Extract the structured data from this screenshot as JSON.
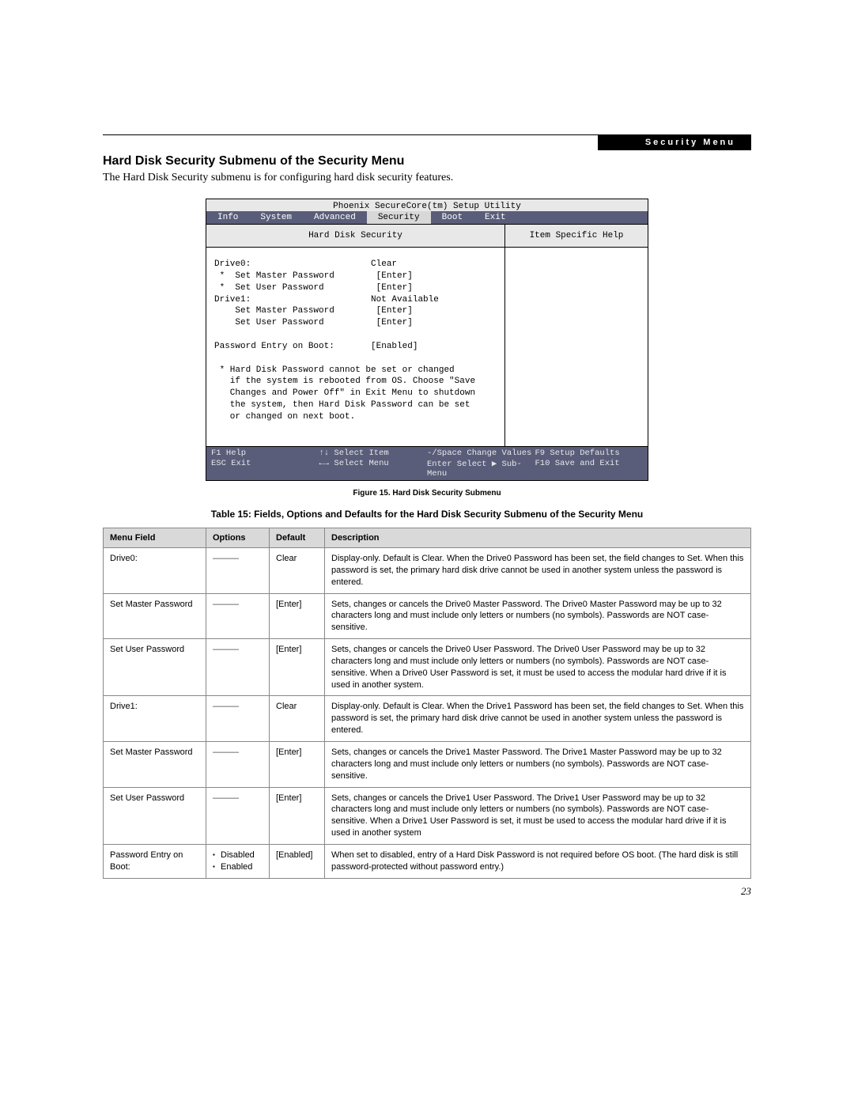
{
  "header": {
    "label": "Security Menu"
  },
  "section": {
    "title": "Hard Disk Security Submenu of the Security Menu",
    "intro": "The Hard Disk Security submenu is for configuring hard disk security features."
  },
  "bios": {
    "title": "Phoenix SecureCore(tm) Setup Utility",
    "tabs": [
      "Info",
      "System",
      "Advanced",
      "Security",
      "Boot",
      "Exit"
    ],
    "active_tab_index": 3,
    "left_head": "Hard Disk Security",
    "right_head": "Item Specific Help",
    "content": "Drive0:                       Clear\n *  Set Master Password        [Enter]\n *  Set User Password          [Enter]\nDrive1:                       Not Available\n    Set Master Password        [Enter]\n    Set User Password          [Enter]\n\nPassword Entry on Boot:       [Enabled]\n\n * Hard Disk Password cannot be set or changed\n   if the system is rebooted from OS. Choose \"Save\n   Changes and Power Off\" in Exit Menu to shutdown\n   the system, then Hard Disk Password can be set\n   or changed on next boot.",
    "footer": {
      "r1c1": "F1  Help",
      "r1c2": "↑↓ Select Item",
      "r1c3": "-/Space  Change Values",
      "r1c4": "F9  Setup Defaults",
      "r2c1": "ESC Exit",
      "r2c2": "←→ Select Menu",
      "r2c3": "Enter    Select ▶ Sub-Menu",
      "r2c4": "F10 Save and Exit"
    }
  },
  "figure_caption": "Figure 15.   Hard Disk Security Submenu",
  "table_caption": "Table 15: Fields, Options and Defaults for the Hard Disk Security Submenu of the Security Menu",
  "table": {
    "headers": [
      "Menu Field",
      "Options",
      "Default",
      "Description"
    ],
    "rows": [
      {
        "field": "Drive0:",
        "options_dash": true,
        "options": [],
        "default": "Clear",
        "desc": "Display-only. Default is Clear. When the Drive0 Password has been set, the field changes to Set. When this password is set, the primary hard disk drive cannot be used in another system unless the password is entered."
      },
      {
        "field": "Set Master Password",
        "options_dash": true,
        "options": [],
        "default": "[Enter]",
        "desc": "Sets, changes or cancels the Drive0 Master Password. The Drive0 Master Password may be up to 32 characters long and must include only letters or numbers (no symbols). Passwords are NOT case-sensitive."
      },
      {
        "field": "Set User Password",
        "options_dash": true,
        "options": [],
        "default": "[Enter]",
        "desc": "Sets, changes or cancels the Drive0 User Password. The Drive0 User Password may be up to 32 characters long and must include only letters or numbers (no symbols). Passwords are NOT case-sensitive. When a Drive0 User Password is set, it must be used to access the modular hard drive if it is used in another system."
      },
      {
        "field": "Drive1:",
        "options_dash": true,
        "options": [],
        "default": "Clear",
        "desc": "Display-only. Default is Clear. When the Drive1 Password has been set, the field changes to Set. When this password is set, the primary hard disk drive cannot be used in another system unless the password is entered."
      },
      {
        "field": "Set Master Password",
        "options_dash": true,
        "options": [],
        "default": "[Enter]",
        "desc": "Sets, changes or cancels the Drive1 Master Password. The Drive1 Master Password may be up to 32 characters long and must include only letters or numbers (no symbols). Passwords are NOT case-sensitive."
      },
      {
        "field": "Set User Password",
        "options_dash": true,
        "options": [],
        "default": "[Enter]",
        "desc": "Sets, changes or cancels the Drive1 User Password. The Drive1 User Password may be up to 32 characters long and must include only letters or numbers (no symbols). Passwords are NOT case-sensitive. When a Drive1 User Password is set, it must be used to access the modular hard drive if it is used in another system"
      },
      {
        "field": "Password Entry on Boot:",
        "options_dash": false,
        "options": [
          "Disabled",
          "Enabled"
        ],
        "default": "[Enabled]",
        "desc": "When set to disabled, entry of a Hard Disk Password is not required before OS boot. (The hard disk is still password-protected without password entry.)"
      }
    ]
  },
  "page_number": "23",
  "colors": {
    "bios_bar": "#5a5d7a",
    "panel_gray": "#e8e8e8",
    "table_header": "#d9d9d9",
    "border": "#888888"
  }
}
